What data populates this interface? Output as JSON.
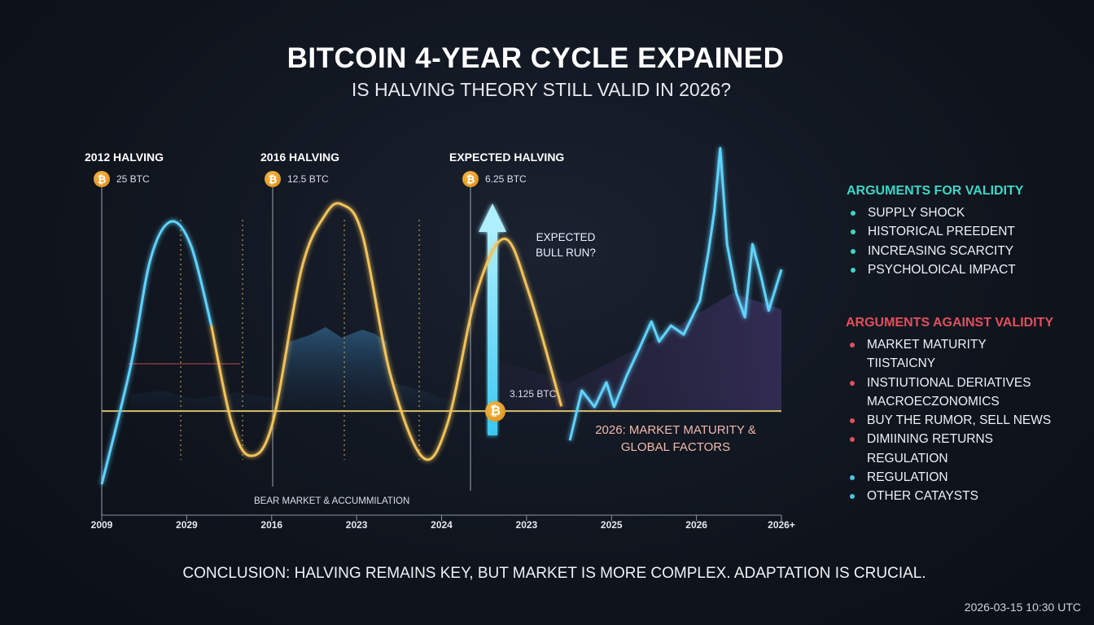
{
  "header": {
    "title": "BITCOIN 4-YEAR CYCLE EXPAINED",
    "subtitle": "IS HALVING THEORY STILL VALID IN 2026?"
  },
  "halvings": [
    {
      "label": "2012 HALVING",
      "reward": "25 BTC",
      "icon": "bitcoin-coin-icon"
    },
    {
      "label": "2016 HALVING",
      "reward": "12.5 BTC",
      "icon": "bitcoin-coin-icon"
    },
    {
      "label": "EXPECTED HALVING",
      "reward": "6.25 BTC",
      "icon": "bitcoin-coin-icon"
    }
  ],
  "annotations": {
    "bull_run": "EXPECTED BULL RUN?",
    "next_reward": "3.125 BTC",
    "market_2026_line1": "2026: MARKET MATURITY &",
    "market_2026_line2": "GLOBAL FACTORS",
    "bear_market": "BEAR MARKET & ACCUMMILATION"
  },
  "arguments_for": {
    "title": "ARGUMENTS FOR VALIDITY",
    "color": "#3fd6c6",
    "items": [
      "SUPPLY SHOCK",
      "HISTORICAL PREEDENT",
      "INCREASING SCARCITY",
      "PSYCHOLOICAL IMPACT"
    ]
  },
  "arguments_against": {
    "title": "ARGUMENTS AGAINST VALIDITY",
    "color": "#e0505e",
    "items": [
      {
        "text": "MARKET MATURITY",
        "bullet": true
      },
      {
        "text": "TIISTAICNY",
        "bullet": false
      },
      {
        "text": "INSTIUTIONAL DERIATIVES",
        "bullet": true
      },
      {
        "text": "MACROECZONOMICS",
        "bullet": false
      },
      {
        "text": "BUY THE RUMOR, SELL NEWS",
        "bullet": true
      },
      {
        "text": "DIMIINING RETURNS",
        "bullet": true
      },
      {
        "text": "REGULATION",
        "bullet": false
      },
      {
        "text": "REGULATION",
        "bullet": true,
        "bullet_color": "#49c6e6"
      },
      {
        "text": "OTHER CATAYSTS",
        "bullet": true,
        "bullet_color": "#49c6e6"
      }
    ]
  },
  "conclusion": "CONCLUSION: HALVING REMAINS KEY, BUT MARKET IS MORE COMPLEX. ADAPTATION IS CRUCIAL.",
  "timestamp": "2026-03-15 10:30 UTC",
  "chart_data": {
    "type": "line",
    "title": "",
    "xlabel": "",
    "ylabel": "",
    "x_tick_labels": [
      "2009",
      "2029",
      "2016",
      "2023",
      "2024",
      "2023",
      "2025",
      "2026",
      "2026+"
    ],
    "y_axis_shown": false,
    "ylim": [
      0,
      100
    ],
    "grid": false,
    "series": [
      {
        "color": "#5fd3ff",
        "points": [
          [
            0,
            1.2
          ],
          [
            0.34,
            35.7
          ],
          [
            0.57,
            66.7
          ],
          [
            0.81,
            78
          ],
          [
            1.05,
            71
          ],
          [
            1.29,
            47.6
          ]
        ]
      },
      {
        "color": "#f2c25a",
        "points": [
          [
            1.29,
            47.6
          ],
          [
            1.53,
            19
          ],
          [
            1.75,
            9.5
          ],
          [
            2.01,
            19
          ],
          [
            2.35,
            64
          ],
          [
            2.63,
            80
          ],
          [
            2.83,
            83
          ],
          [
            3.07,
            74
          ],
          [
            3.4,
            33
          ],
          [
            3.78,
            9
          ],
          [
            4.07,
            19
          ],
          [
            4.41,
            57
          ],
          [
            4.74,
            73
          ],
          [
            5.03,
            57
          ],
          [
            5.41,
            24
          ]
        ]
      },
      {
        "color": "#5fd3ff",
        "points": [
          [
            5.51,
            14
          ],
          [
            5.65,
            28.6
          ],
          [
            5.8,
            23.8
          ],
          [
            5.94,
            31
          ],
          [
            6.03,
            23.8
          ],
          [
            6.18,
            33
          ],
          [
            6.32,
            40.5
          ],
          [
            6.47,
            48.8
          ],
          [
            6.56,
            42.9
          ],
          [
            6.7,
            47.6
          ],
          [
            6.85,
            45
          ],
          [
            7.04,
            54.8
          ],
          [
            7.14,
            69
          ],
          [
            7.21,
            81
          ],
          [
            7.28,
            99.5
          ],
          [
            7.36,
            71.4
          ],
          [
            7.47,
            57
          ],
          [
            7.57,
            50
          ],
          [
            7.66,
            71.4
          ],
          [
            7.76,
            62
          ],
          [
            7.85,
            52
          ],
          [
            8,
            64
          ]
        ]
      }
    ],
    "reference_level": 22.6,
    "reference_color": "#d9c06a",
    "colors": {
      "cyan": "#5fd3ff",
      "gold": "#f2c25a",
      "bitcoin": "#f0a12a"
    }
  }
}
